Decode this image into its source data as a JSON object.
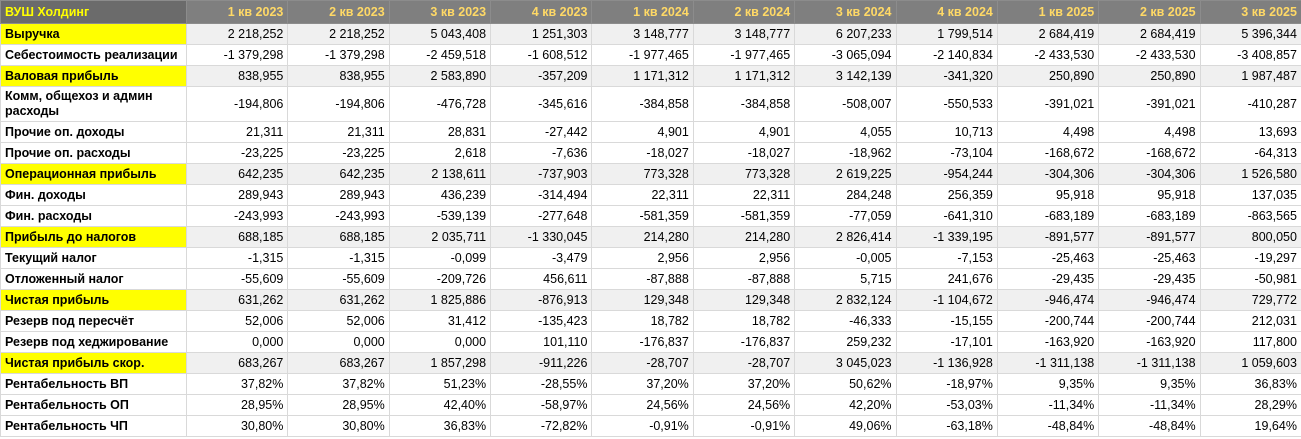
{
  "table": {
    "corner": "ВУШ Холдинг",
    "columns": [
      "1 кв 2023",
      "2 кв 2023",
      "3 кв 2023",
      "4 кв 2023",
      "1 кв 2024",
      "2 кв 2024",
      "3 кв 2024",
      "4 кв 2024",
      "1 кв 2025",
      "2 кв 2025",
      "3 кв 2025"
    ],
    "header_color": "#7f7f7f",
    "header_text_color": "#ffd966",
    "highlight_color": "#ffff00",
    "rows": [
      {
        "label": "Выручка",
        "highlight": true,
        "values": [
          "2 218,252",
          "2 218,252",
          "5 043,408",
          "1 251,303",
          "3 148,777",
          "3 148,777",
          "6 207,233",
          "1 799,514",
          "2 684,419",
          "2 684,419",
          "5 396,344"
        ]
      },
      {
        "label": "Себестоимость реализации",
        "highlight": false,
        "values": [
          "-1 379,298",
          "-1 379,298",
          "-2 459,518",
          "-1 608,512",
          "-1 977,465",
          "-1 977,465",
          "-3 065,094",
          "-2 140,834",
          "-2 433,530",
          "-2 433,530",
          "-3 408,857"
        ]
      },
      {
        "label": "Валовая прибыль",
        "highlight": true,
        "values": [
          "838,955",
          "838,955",
          "2 583,890",
          "-357,209",
          "1 171,312",
          "1 171,312",
          "3 142,139",
          "-341,320",
          "250,890",
          "250,890",
          "1 987,487"
        ]
      },
      {
        "label": "Комм, общехоз и админ расходы",
        "highlight": false,
        "tall": true,
        "values": [
          "-194,806",
          "-194,806",
          "-476,728",
          "-345,616",
          "-384,858",
          "-384,858",
          "-508,007",
          "-550,533",
          "-391,021",
          "-391,021",
          "-410,287"
        ]
      },
      {
        "label": "Прочие оп. доходы",
        "highlight": false,
        "values": [
          "21,311",
          "21,311",
          "28,831",
          "-27,442",
          "4,901",
          "4,901",
          "4,055",
          "10,713",
          "4,498",
          "4,498",
          "13,693"
        ]
      },
      {
        "label": "Прочие оп. расходы",
        "highlight": false,
        "values": [
          "-23,225",
          "-23,225",
          "2,618",
          "-7,636",
          "-18,027",
          "-18,027",
          "-18,962",
          "-73,104",
          "-168,672",
          "-168,672",
          "-64,313"
        ]
      },
      {
        "label": "Операционная прибыль",
        "highlight": true,
        "values": [
          "642,235",
          "642,235",
          "2 138,611",
          "-737,903",
          "773,328",
          "773,328",
          "2 619,225",
          "-954,244",
          "-304,306",
          "-304,306",
          "1 526,580"
        ]
      },
      {
        "label": "Фин. доходы",
        "highlight": false,
        "values": [
          "289,943",
          "289,943",
          "436,239",
          "-314,494",
          "22,311",
          "22,311",
          "284,248",
          "256,359",
          "95,918",
          "95,918",
          "137,035"
        ]
      },
      {
        "label": "Фин. расходы",
        "highlight": false,
        "values": [
          "-243,993",
          "-243,993",
          "-539,139",
          "-277,648",
          "-581,359",
          "-581,359",
          "-77,059",
          "-641,310",
          "-683,189",
          "-683,189",
          "-863,565"
        ]
      },
      {
        "label": "Прибыль до налогов",
        "highlight": true,
        "values": [
          "688,185",
          "688,185",
          "2 035,711",
          "-1 330,045",
          "214,280",
          "214,280",
          "2 826,414",
          "-1 339,195",
          "-891,577",
          "-891,577",
          "800,050"
        ]
      },
      {
        "label": "Текущий налог",
        "highlight": false,
        "values": [
          "-1,315",
          "-1,315",
          "-0,099",
          "-3,479",
          "2,956",
          "2,956",
          "-0,005",
          "-7,153",
          "-25,463",
          "-25,463",
          "-19,297"
        ]
      },
      {
        "label": "Отложенный налог",
        "highlight": false,
        "values": [
          "-55,609",
          "-55,609",
          "-209,726",
          "456,611",
          "-87,888",
          "-87,888",
          "5,715",
          "241,676",
          "-29,435",
          "-29,435",
          "-50,981"
        ]
      },
      {
        "label": "Чистая прибыль",
        "highlight": true,
        "values": [
          "631,262",
          "631,262",
          "1 825,886",
          "-876,913",
          "129,348",
          "129,348",
          "2 832,124",
          "-1 104,672",
          "-946,474",
          "-946,474",
          "729,772"
        ]
      },
      {
        "label": "Резерв под пересчёт",
        "highlight": false,
        "values": [
          "52,006",
          "52,006",
          "31,412",
          "-135,423",
          "18,782",
          "18,782",
          "-46,333",
          "-15,155",
          "-200,744",
          "-200,744",
          "212,031"
        ]
      },
      {
        "label": "Резерв под хеджирование",
        "highlight": false,
        "values": [
          "0,000",
          "0,000",
          "0,000",
          "101,110",
          "-176,837",
          "-176,837",
          "259,232",
          "-17,101",
          "-163,920",
          "-163,920",
          "117,800"
        ]
      },
      {
        "label": "Чистая прибыль скор.",
        "highlight": true,
        "values": [
          "683,267",
          "683,267",
          "1 857,298",
          "-911,226",
          "-28,707",
          "-28,707",
          "3 045,023",
          "-1 136,928",
          "-1 311,138",
          "-1 311,138",
          "1 059,603"
        ]
      },
      {
        "label": "Рентабельность ВП",
        "highlight": false,
        "values": [
          "37,82%",
          "37,82%",
          "51,23%",
          "-28,55%",
          "37,20%",
          "37,20%",
          "50,62%",
          "-18,97%",
          "9,35%",
          "9,35%",
          "36,83%"
        ]
      },
      {
        "label": "Рентабельность ОП",
        "highlight": false,
        "values": [
          "28,95%",
          "28,95%",
          "42,40%",
          "-58,97%",
          "24,56%",
          "24,56%",
          "42,20%",
          "-53,03%",
          "-11,34%",
          "-11,34%",
          "28,29%"
        ]
      },
      {
        "label": "Рентабельность ЧП",
        "highlight": false,
        "values": [
          "30,80%",
          "30,80%",
          "36,83%",
          "-72,82%",
          "-0,91%",
          "-0,91%",
          "49,06%",
          "-63,18%",
          "-48,84%",
          "-48,84%",
          "19,64%"
        ]
      }
    ]
  }
}
